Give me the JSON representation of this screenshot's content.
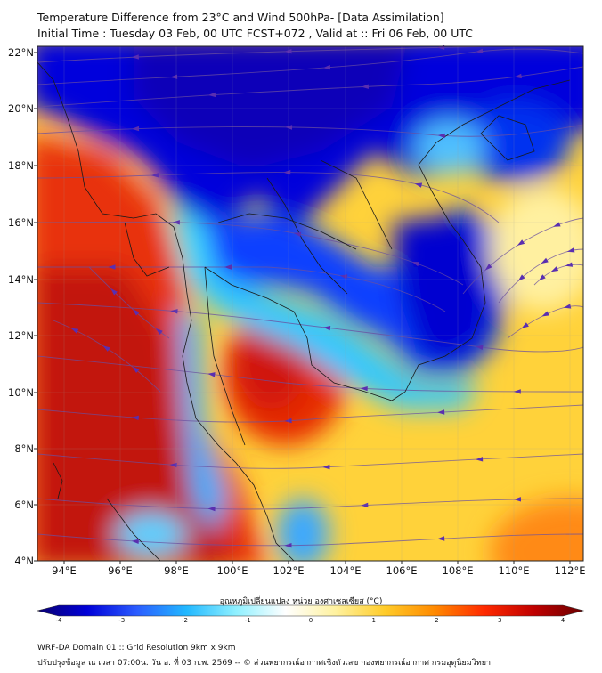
{
  "title_line1": "Temperature Difference from 23°C and Wind 500hPa- [Data Assimilation]",
  "title_line2": "Initial Time : Tuesday 03 Feb, 00 UTC FCST+072 , Valid at :: Fri 06 Feb, 00 UTC",
  "lat_labels": [
    "22°N",
    "20°N",
    "18°N",
    "16°N",
    "14°N",
    "12°N",
    "10°N",
    "8°N",
    "6°N",
    "4°N"
  ],
  "lon_labels": [
    "94°E",
    "96°E",
    "98°E",
    "100°E",
    "102°E",
    "104°E",
    "106°E",
    "108°E",
    "110°E",
    "112°E"
  ],
  "colorbar": {
    "label": "อุณหภูมิเปลี่ยนแปลง หน่วย องศาเซลเซียส (°C)",
    "ticks": [
      "-4",
      "-3",
      "-2",
      "-1",
      "0",
      "1",
      "2",
      "3",
      "4"
    ],
    "colors": [
      "#0a0070",
      "#0000d8",
      "#2b5cff",
      "#22b8ff",
      "#8ff0ff",
      "#ffffff",
      "#fff2a0",
      "#ffcc2a",
      "#ff8a00",
      "#ff2a00",
      "#c00000",
      "#6a0000"
    ]
  },
  "footer_line1": "WRF-DA Domain 01 :: Grid Resolution 9km x 9km",
  "footer_line2": "ปรับปรุงข้อมูล ณ เวลา 07:00น. วัน อ. ที่ 03 ก.พ. 2569 -- © ส่วนพยากรณ์อากาศเชิงตัวเลข กองพยากรณ์อากาศ กรมอุตุนิยมวิทยา",
  "map_extent": {
    "lon_min": 93,
    "lon_max": 112.5,
    "lat_min": 4,
    "lat_max": 22.3
  }
}
